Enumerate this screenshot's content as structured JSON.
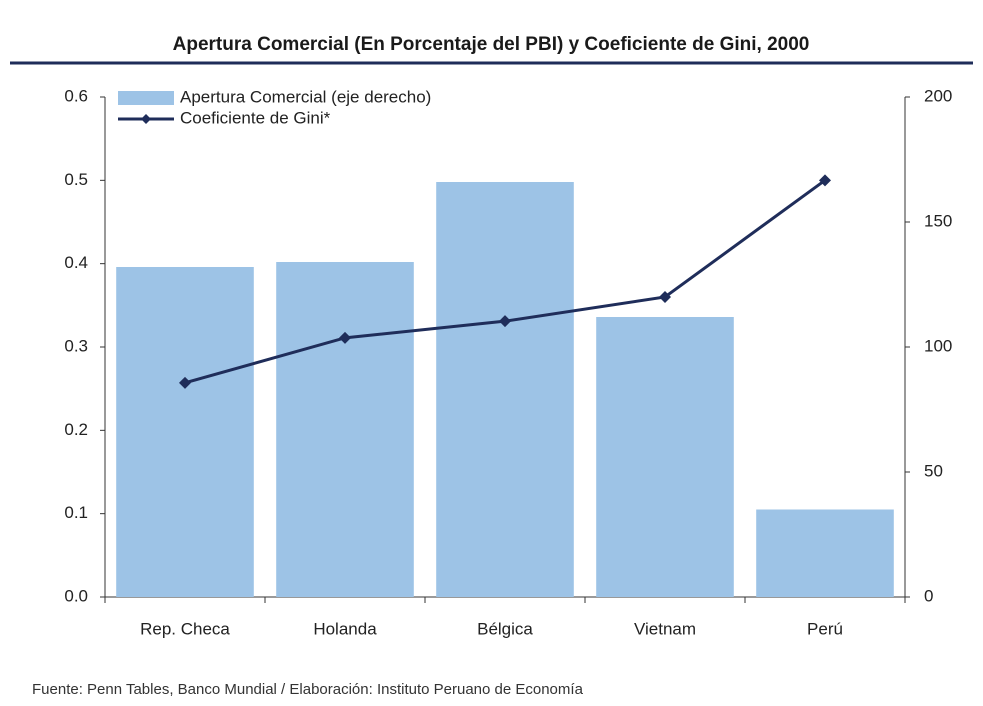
{
  "chart_data": {
    "type": "bar-line",
    "title": "Apertura Comercial (En Porcentaje del PBI) y Coeficiente de Gini, 2000",
    "source": "Fuente: Penn Tables, Banco Mundial  / Elaboración: Instituto Peruano de Economía",
    "categories": [
      "Rep. Checa",
      "Holanda",
      "Bélgica",
      "Vietnam",
      "Perú"
    ],
    "series": [
      {
        "name": "Apertura Comercial (eje derecho)",
        "type": "bar",
        "axis": "y2",
        "color": "#9dc3e6",
        "values": [
          132,
          134,
          166,
          112,
          35
        ]
      },
      {
        "name": "Coeficiente de Gini*",
        "type": "line",
        "axis": "y",
        "color": "#1f2d5a",
        "values": [
          0.257,
          0.311,
          0.331,
          0.36,
          0.5
        ]
      }
    ],
    "ylim": [
      0,
      0.6
    ],
    "yticks": [
      {
        "value": 0,
        "label": "0.0"
      },
      0.1,
      0.2,
      0.3,
      0.4,
      0.5,
      0.6
    ],
    "y2lim": [
      0,
      200
    ],
    "y2ticks": [
      0,
      50,
      100,
      150,
      200
    ],
    "legend": "top-left"
  }
}
